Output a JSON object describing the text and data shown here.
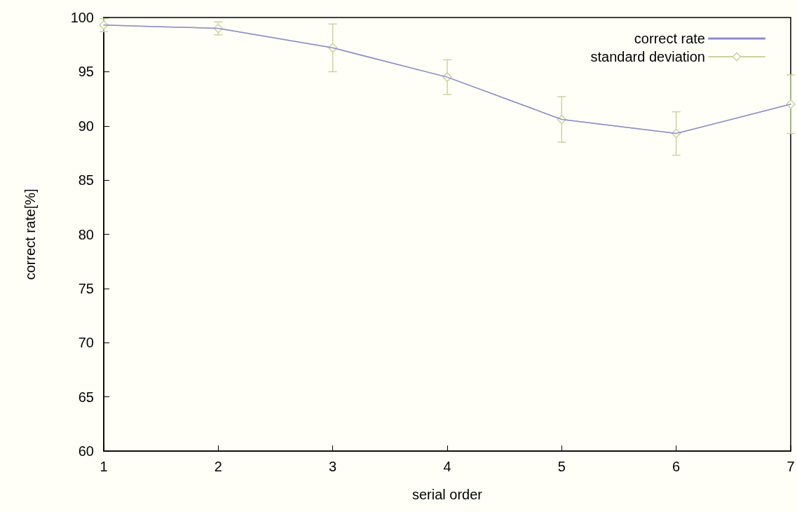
{
  "chart_data": {
    "type": "line",
    "xlabel": "serial order",
    "ylabel": "correct rate[%]",
    "x": [
      1,
      2,
      3,
      4,
      5,
      6,
      7
    ],
    "xlim": [
      1,
      7
    ],
    "xticks": [
      1,
      2,
      3,
      4,
      5,
      6,
      7
    ],
    "ylim": [
      60,
      100
    ],
    "yticks": [
      60,
      65,
      70,
      75,
      80,
      85,
      90,
      95,
      100
    ],
    "grid": false,
    "legend": "top right",
    "line_style": "solid",
    "series": [
      {
        "name": "correct rate",
        "color": "#8c8cd0",
        "marker": "none",
        "values": [
          99.3,
          99.0,
          97.2,
          94.5,
          90.6,
          89.3,
          92.0
        ]
      },
      {
        "name": "standard deviation",
        "color": "#c8d4a0",
        "marker": "diamond",
        "values": [
          99.3,
          99.0,
          97.2,
          94.5,
          90.6,
          89.3,
          92.0
        ],
        "errors": [
          0.6,
          0.6,
          2.2,
          1.6,
          2.1,
          2.0,
          2.7
        ]
      }
    ]
  }
}
